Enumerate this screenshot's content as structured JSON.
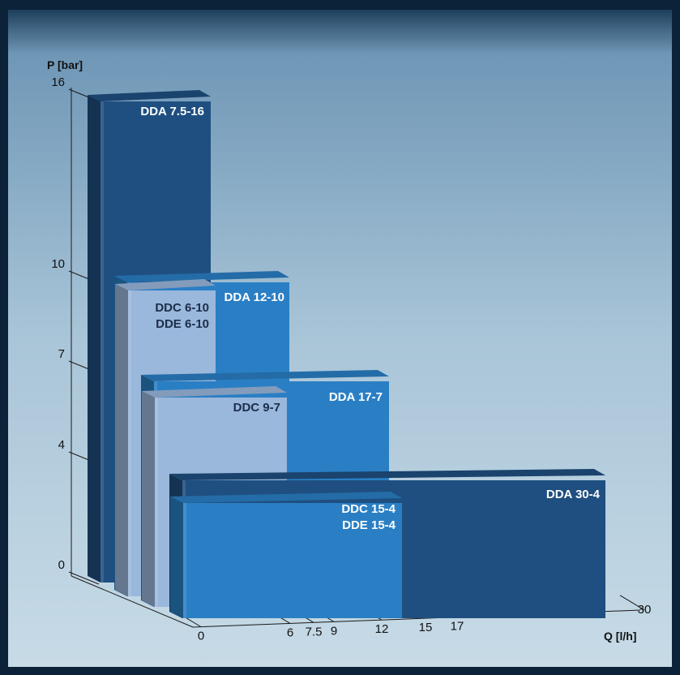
{
  "chart_data": {
    "type": "bar",
    "style": "3d-stepped",
    "xlabel": "Q [l/h]",
    "ylabel": "P [bar]",
    "x_ticks": [
      "0",
      "6",
      "7.5",
      "9",
      "12",
      "15",
      "17",
      "30"
    ],
    "y_ticks": [
      "0",
      "4",
      "7",
      "10",
      "16"
    ],
    "ylim": [
      0,
      16
    ],
    "series": [
      {
        "label": "DDA 7.5-16",
        "q_max": 7.5,
        "p_max": 16,
        "color": "#1f4f80"
      },
      {
        "label": "DDA 12-10",
        "q_max": 12,
        "p_max": 10,
        "color": "#2a7fc4"
      },
      {
        "label": "DDC 6-10\nDDE 6-10",
        "q_max": 6,
        "p_max": 10,
        "color": "#9ab7dc"
      },
      {
        "label": "DDA 17-7",
        "q_max": 17,
        "p_max": 7,
        "color": "#2a7fc4"
      },
      {
        "label": "DDC 9-7",
        "q_max": 9,
        "p_max": 7,
        "color": "#9ab7dc"
      },
      {
        "label": "DDA 30-4",
        "q_max": 30,
        "p_max": 4,
        "color": "#1f4f80"
      },
      {
        "label": "DDC 15-4\nDDE 15-4",
        "q_max": 15,
        "p_max": 4,
        "color": "#2a7fc4"
      }
    ]
  }
}
